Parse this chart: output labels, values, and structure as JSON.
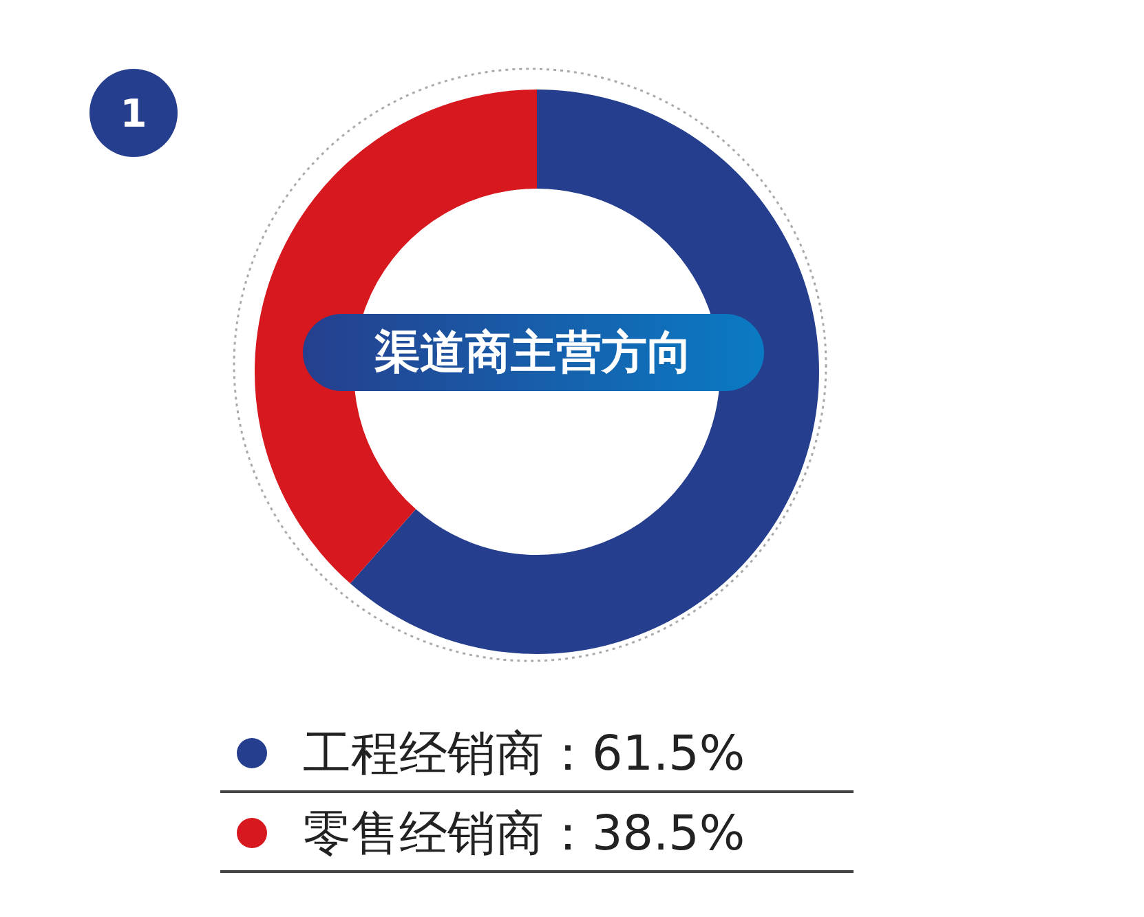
{
  "chart_data": {
    "type": "donut",
    "title": "渠道商主营方向",
    "categories": [
      "工程经销商",
      "零售经销商"
    ],
    "values": [
      61.5,
      38.5
    ],
    "value_labels": [
      "：61.5%",
      "：38.5%"
    ],
    "colors": [
      "#253f8e",
      "#d7181f"
    ],
    "legend": "bottom",
    "annotations": [
      "1"
    ]
  }
}
